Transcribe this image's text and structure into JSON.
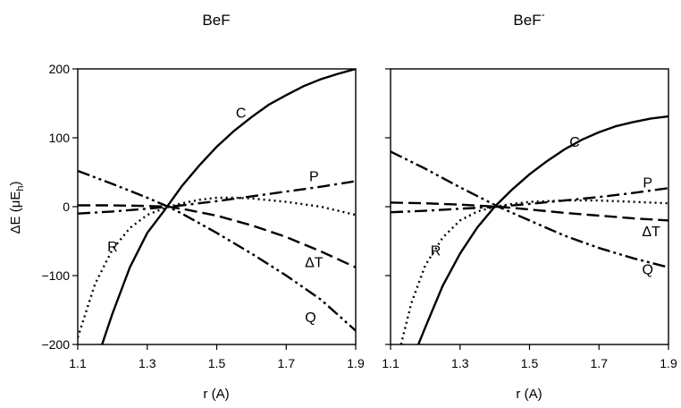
{
  "chart_data": [
    {
      "type": "line",
      "title": "BeF",
      "title_suffix": "",
      "xlabel": "r (A)",
      "ylabel": "ΔE (μE",
      "ylabel_subscript": "h",
      "ylabel_close": ")",
      "xlim": [
        1.1,
        1.9
      ],
      "ylim": [
        -200,
        200
      ],
      "x_ticks": [
        "1.1",
        "1.3",
        "1.5",
        "1.7",
        "1.9"
      ],
      "y_ticks": [
        "200",
        "100",
        "0",
        "-100",
        "-200"
      ],
      "series": [
        {
          "name": "C",
          "style": "solid",
          "x": [
            1.17,
            1.2,
            1.25,
            1.3,
            1.35,
            1.4,
            1.45,
            1.5,
            1.55,
            1.6,
            1.65,
            1.7,
            1.75,
            1.8,
            1.85,
            1.9
          ],
          "y": [
            -200,
            -155,
            -88,
            -38,
            -5,
            30,
            60,
            87,
            110,
            130,
            148,
            162,
            175,
            185,
            193,
            200
          ],
          "label_at": [
            1.57,
            137
          ]
        },
        {
          "name": "P",
          "style": "dashdot",
          "x": [
            1.1,
            1.2,
            1.3,
            1.36,
            1.4,
            1.5,
            1.6,
            1.7,
            1.8,
            1.9
          ],
          "y": [
            -10,
            -7,
            -3,
            0,
            2,
            8,
            15,
            22,
            29,
            37
          ],
          "label_at": [
            1.78,
            45
          ]
        },
        {
          "name": "ΔT",
          "style": "dashed",
          "x": [
            1.1,
            1.2,
            1.3,
            1.36,
            1.4,
            1.5,
            1.6,
            1.7,
            1.8,
            1.9
          ],
          "y": [
            2,
            2,
            1,
            0,
            -3,
            -13,
            -27,
            -44,
            -65,
            -88
          ],
          "label_at": [
            1.78,
            -80
          ]
        },
        {
          "name": "Q",
          "style": "dashdotdot",
          "x": [
            1.1,
            1.2,
            1.3,
            1.36,
            1.4,
            1.5,
            1.6,
            1.7,
            1.8,
            1.9
          ],
          "y": [
            52,
            33,
            13,
            0,
            -10,
            -38,
            -68,
            -100,
            -135,
            -180
          ],
          "label_at": [
            1.77,
            -160
          ]
        },
        {
          "name": "R",
          "style": "dotted",
          "x": [
            1.1,
            1.15,
            1.2,
            1.25,
            1.3,
            1.35,
            1.4,
            1.45,
            1.5,
            1.55,
            1.6,
            1.7,
            1.8,
            1.9
          ],
          "y": [
            -190,
            -112,
            -62,
            -31,
            -12,
            -2,
            5,
            10,
            13,
            13,
            12,
            7,
            0,
            -12
          ],
          "label_at": [
            1.2,
            -57
          ]
        }
      ]
    },
    {
      "type": "line",
      "title": "BeF",
      "title_suffix": "-",
      "xlabel": "r (A)",
      "xlim": [
        1.1,
        1.9
      ],
      "ylim": [
        -200,
        200
      ],
      "x_ticks": [
        "1.1",
        "1.3",
        "1.5",
        "1.7",
        "1.9"
      ],
      "series": [
        {
          "name": "C",
          "style": "solid",
          "x": [
            1.18,
            1.2,
            1.25,
            1.3,
            1.35,
            1.4,
            1.45,
            1.5,
            1.55,
            1.6,
            1.65,
            1.7,
            1.75,
            1.8,
            1.85,
            1.9
          ],
          "y": [
            -200,
            -175,
            -115,
            -68,
            -30,
            0,
            25,
            47,
            66,
            83,
            97,
            108,
            117,
            123,
            128,
            131
          ],
          "label_at": [
            1.63,
            95
          ]
        },
        {
          "name": "P",
          "style": "dashdot",
          "x": [
            1.1,
            1.2,
            1.3,
            1.41,
            1.5,
            1.6,
            1.7,
            1.8,
            1.9
          ],
          "y": [
            -8,
            -6,
            -3,
            0,
            4,
            9,
            14,
            20,
            27
          ],
          "label_at": [
            1.84,
            36
          ]
        },
        {
          "name": "ΔT",
          "style": "dashed",
          "x": [
            1.1,
            1.2,
            1.3,
            1.41,
            1.5,
            1.6,
            1.7,
            1.8,
            1.9
          ],
          "y": [
            6,
            5,
            3,
            0,
            -4,
            -9,
            -13,
            -17,
            -20
          ],
          "label_at": [
            1.85,
            -35
          ]
        },
        {
          "name": "Q",
          "style": "dashdotdot",
          "x": [
            1.1,
            1.2,
            1.3,
            1.41,
            1.5,
            1.6,
            1.7,
            1.8,
            1.9
          ],
          "y": [
            80,
            55,
            28,
            0,
            -20,
            -42,
            -60,
            -75,
            -88
          ],
          "label_at": [
            1.84,
            -90
          ]
        },
        {
          "name": "R",
          "style": "dotted",
          "x": [
            1.13,
            1.16,
            1.2,
            1.25,
            1.3,
            1.35,
            1.4,
            1.45,
            1.5,
            1.55,
            1.6,
            1.7,
            1.8,
            1.9
          ],
          "y": [
            -200,
            -140,
            -85,
            -45,
            -20,
            -7,
            0,
            4,
            7,
            8,
            9,
            9,
            7,
            5
          ],
          "label_at": [
            1.23,
            -63
          ]
        }
      ]
    }
  ]
}
